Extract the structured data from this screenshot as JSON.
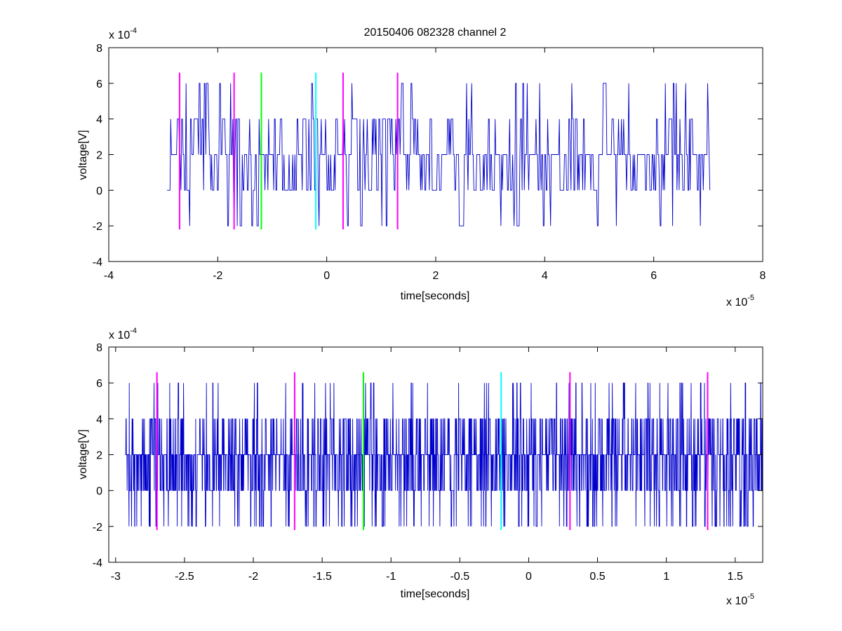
{
  "figure": {
    "title": "20150406 082328 channel 2",
    "background": "#ffffff"
  },
  "colors": {
    "signal": "#0000cc",
    "magenta": "#ff00ff",
    "green": "#00ff00",
    "cyan": "#00ffff",
    "axis": "#000000"
  },
  "chart_data": [
    {
      "type": "line",
      "title": "20150406 082328 channel 2",
      "xlabel": "time[seconds]",
      "ylabel": "voltage[V]",
      "x_exponent_label": "x 10",
      "x_exponent": "-5",
      "y_exponent_label": "x 10",
      "y_exponent": "-4",
      "xlim": [
        -4,
        8
      ],
      "ylim": [
        -4,
        8
      ],
      "xticks": [
        -4,
        -2,
        0,
        2,
        4,
        6,
        8
      ],
      "xtick_labels": [
        "-4",
        "-2",
        "0",
        "2",
        "4",
        "6",
        "8"
      ],
      "yticks": [
        -4,
        -2,
        0,
        2,
        4,
        6,
        8
      ],
      "ytick_labels": [
        "-4",
        "-2",
        "0",
        "2",
        "4",
        "6",
        "8"
      ],
      "grid": false,
      "signal": {
        "x_start": -2.93,
        "x_end": 7.03,
        "baseline": 2,
        "levels": [
          -2,
          0,
          2,
          4,
          6
        ],
        "density": 0.24
      },
      "markers": [
        {
          "x": -2.7,
          "color": "magenta",
          "y0": -2.2,
          "y1": 6.6
        },
        {
          "x": -1.7,
          "color": "magenta",
          "y0": -2.2,
          "y1": 6.6
        },
        {
          "x": -1.2,
          "color": "green",
          "y0": -2.2,
          "y1": 6.6
        },
        {
          "x": -0.2,
          "color": "cyan",
          "y0": -2.2,
          "y1": 6.6
        },
        {
          "x": 0.3,
          "color": "magenta",
          "y0": -2.2,
          "y1": 6.6
        },
        {
          "x": 1.3,
          "color": "magenta",
          "y0": -2.2,
          "y1": 6.6
        }
      ]
    },
    {
      "type": "line",
      "xlabel": "time[seconds]",
      "ylabel": "voltage[V]",
      "x_exponent_label": "x 10",
      "x_exponent": "-5",
      "y_exponent_label": "x 10",
      "y_exponent": "-4",
      "xlim": [
        -3.05,
        1.7
      ],
      "ylim": [
        -4,
        8
      ],
      "xticks": [
        -3,
        -2.5,
        -2,
        -1.5,
        -1,
        -0.5,
        0,
        0.5,
        1,
        1.5
      ],
      "xtick_labels": [
        "-3",
        "-2.5",
        "-2",
        "-1.5",
        "-1",
        "-0.5",
        "0",
        "0.5",
        "1",
        "1.5"
      ],
      "yticks": [
        -4,
        -2,
        0,
        2,
        4,
        6,
        8
      ],
      "ytick_labels": [
        "-4",
        "-2",
        "0",
        "2",
        "4",
        "6",
        "8"
      ],
      "grid": false,
      "signal": {
        "x_start": -2.93,
        "x_end": 1.7,
        "baseline": 2,
        "levels": [
          -2,
          0,
          2,
          4,
          6
        ],
        "density": 0.75
      },
      "markers": [
        {
          "x": -2.7,
          "color": "magenta",
          "y0": -2.2,
          "y1": 6.6
        },
        {
          "x": -1.7,
          "color": "magenta",
          "y0": -2.2,
          "y1": 6.6
        },
        {
          "x": -1.2,
          "color": "green",
          "y0": -2.2,
          "y1": 6.6
        },
        {
          "x": -0.2,
          "color": "cyan",
          "y0": -2.2,
          "y1": 6.6
        },
        {
          "x": 0.3,
          "color": "magenta",
          "y0": -2.2,
          "y1": 6.6
        },
        {
          "x": 1.3,
          "color": "magenta",
          "y0": -2.2,
          "y1": 6.6
        }
      ]
    }
  ]
}
